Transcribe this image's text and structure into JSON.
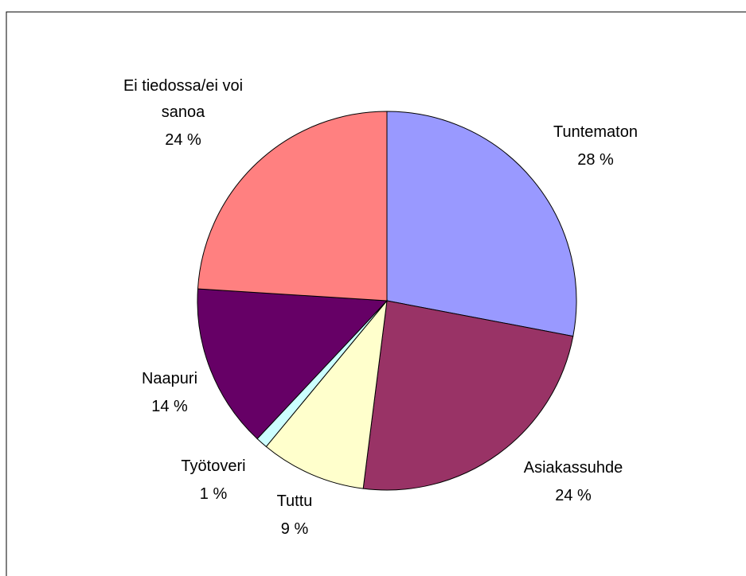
{
  "chart_data": {
    "type": "pie",
    "categories": [
      "Tuntematon",
      "Asiakassuhde",
      "Tuttu",
      "Työtoveri",
      "Naapuri",
      "Ei tiedossa/ei voi sanoa"
    ],
    "values": [
      28,
      24,
      9,
      1,
      14,
      24
    ],
    "value_labels": [
      "28 %",
      "24 %",
      "9 %",
      "1 %",
      "14 %",
      "24 %"
    ],
    "colors": [
      "#9999ff",
      "#993366",
      "#ffffcc",
      "#ccffff",
      "#660066",
      "#ff8080"
    ]
  }
}
